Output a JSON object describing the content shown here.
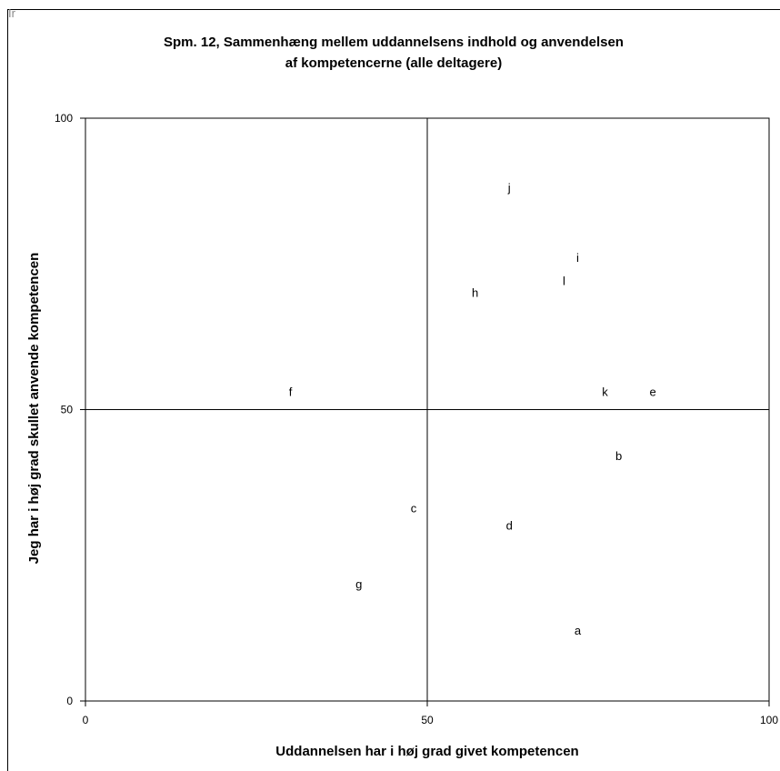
{
  "stray_text": "Ir",
  "chart_data": {
    "type": "scatter",
    "title_lines": [
      "Spm. 12, Sammenhæng mellem uddannelsens indhold og anvendelsen",
      "af kompetencerne (alle deltagere)"
    ],
    "xlabel": "Uddannelsen har i høj grad givet kompetencen",
    "ylabel": "Jeg har i høj grad skullet anvende kompetencen",
    "xlim": [
      0,
      100
    ],
    "ylim": [
      0,
      100
    ],
    "x_ticks": [
      "0",
      "50",
      "100"
    ],
    "y_ticks": [
      "0",
      "50",
      "100"
    ],
    "grid": "quadrant lines at 50",
    "points": [
      {
        "label": "a",
        "x": 72,
        "y": 12
      },
      {
        "label": "b",
        "x": 78,
        "y": 42
      },
      {
        "label": "c",
        "x": 48,
        "y": 33
      },
      {
        "label": "d",
        "x": 62,
        "y": 30
      },
      {
        "label": "e",
        "x": 83,
        "y": 53
      },
      {
        "label": "f",
        "x": 30,
        "y": 53
      },
      {
        "label": "g",
        "x": 40,
        "y": 20
      },
      {
        "label": "h",
        "x": 57,
        "y": 70
      },
      {
        "label": "i",
        "x": 72,
        "y": 76
      },
      {
        "label": "j",
        "x": 62,
        "y": 88
      },
      {
        "label": "k",
        "x": 76,
        "y": 53
      },
      {
        "label": "l",
        "x": 70,
        "y": 72
      }
    ]
  }
}
